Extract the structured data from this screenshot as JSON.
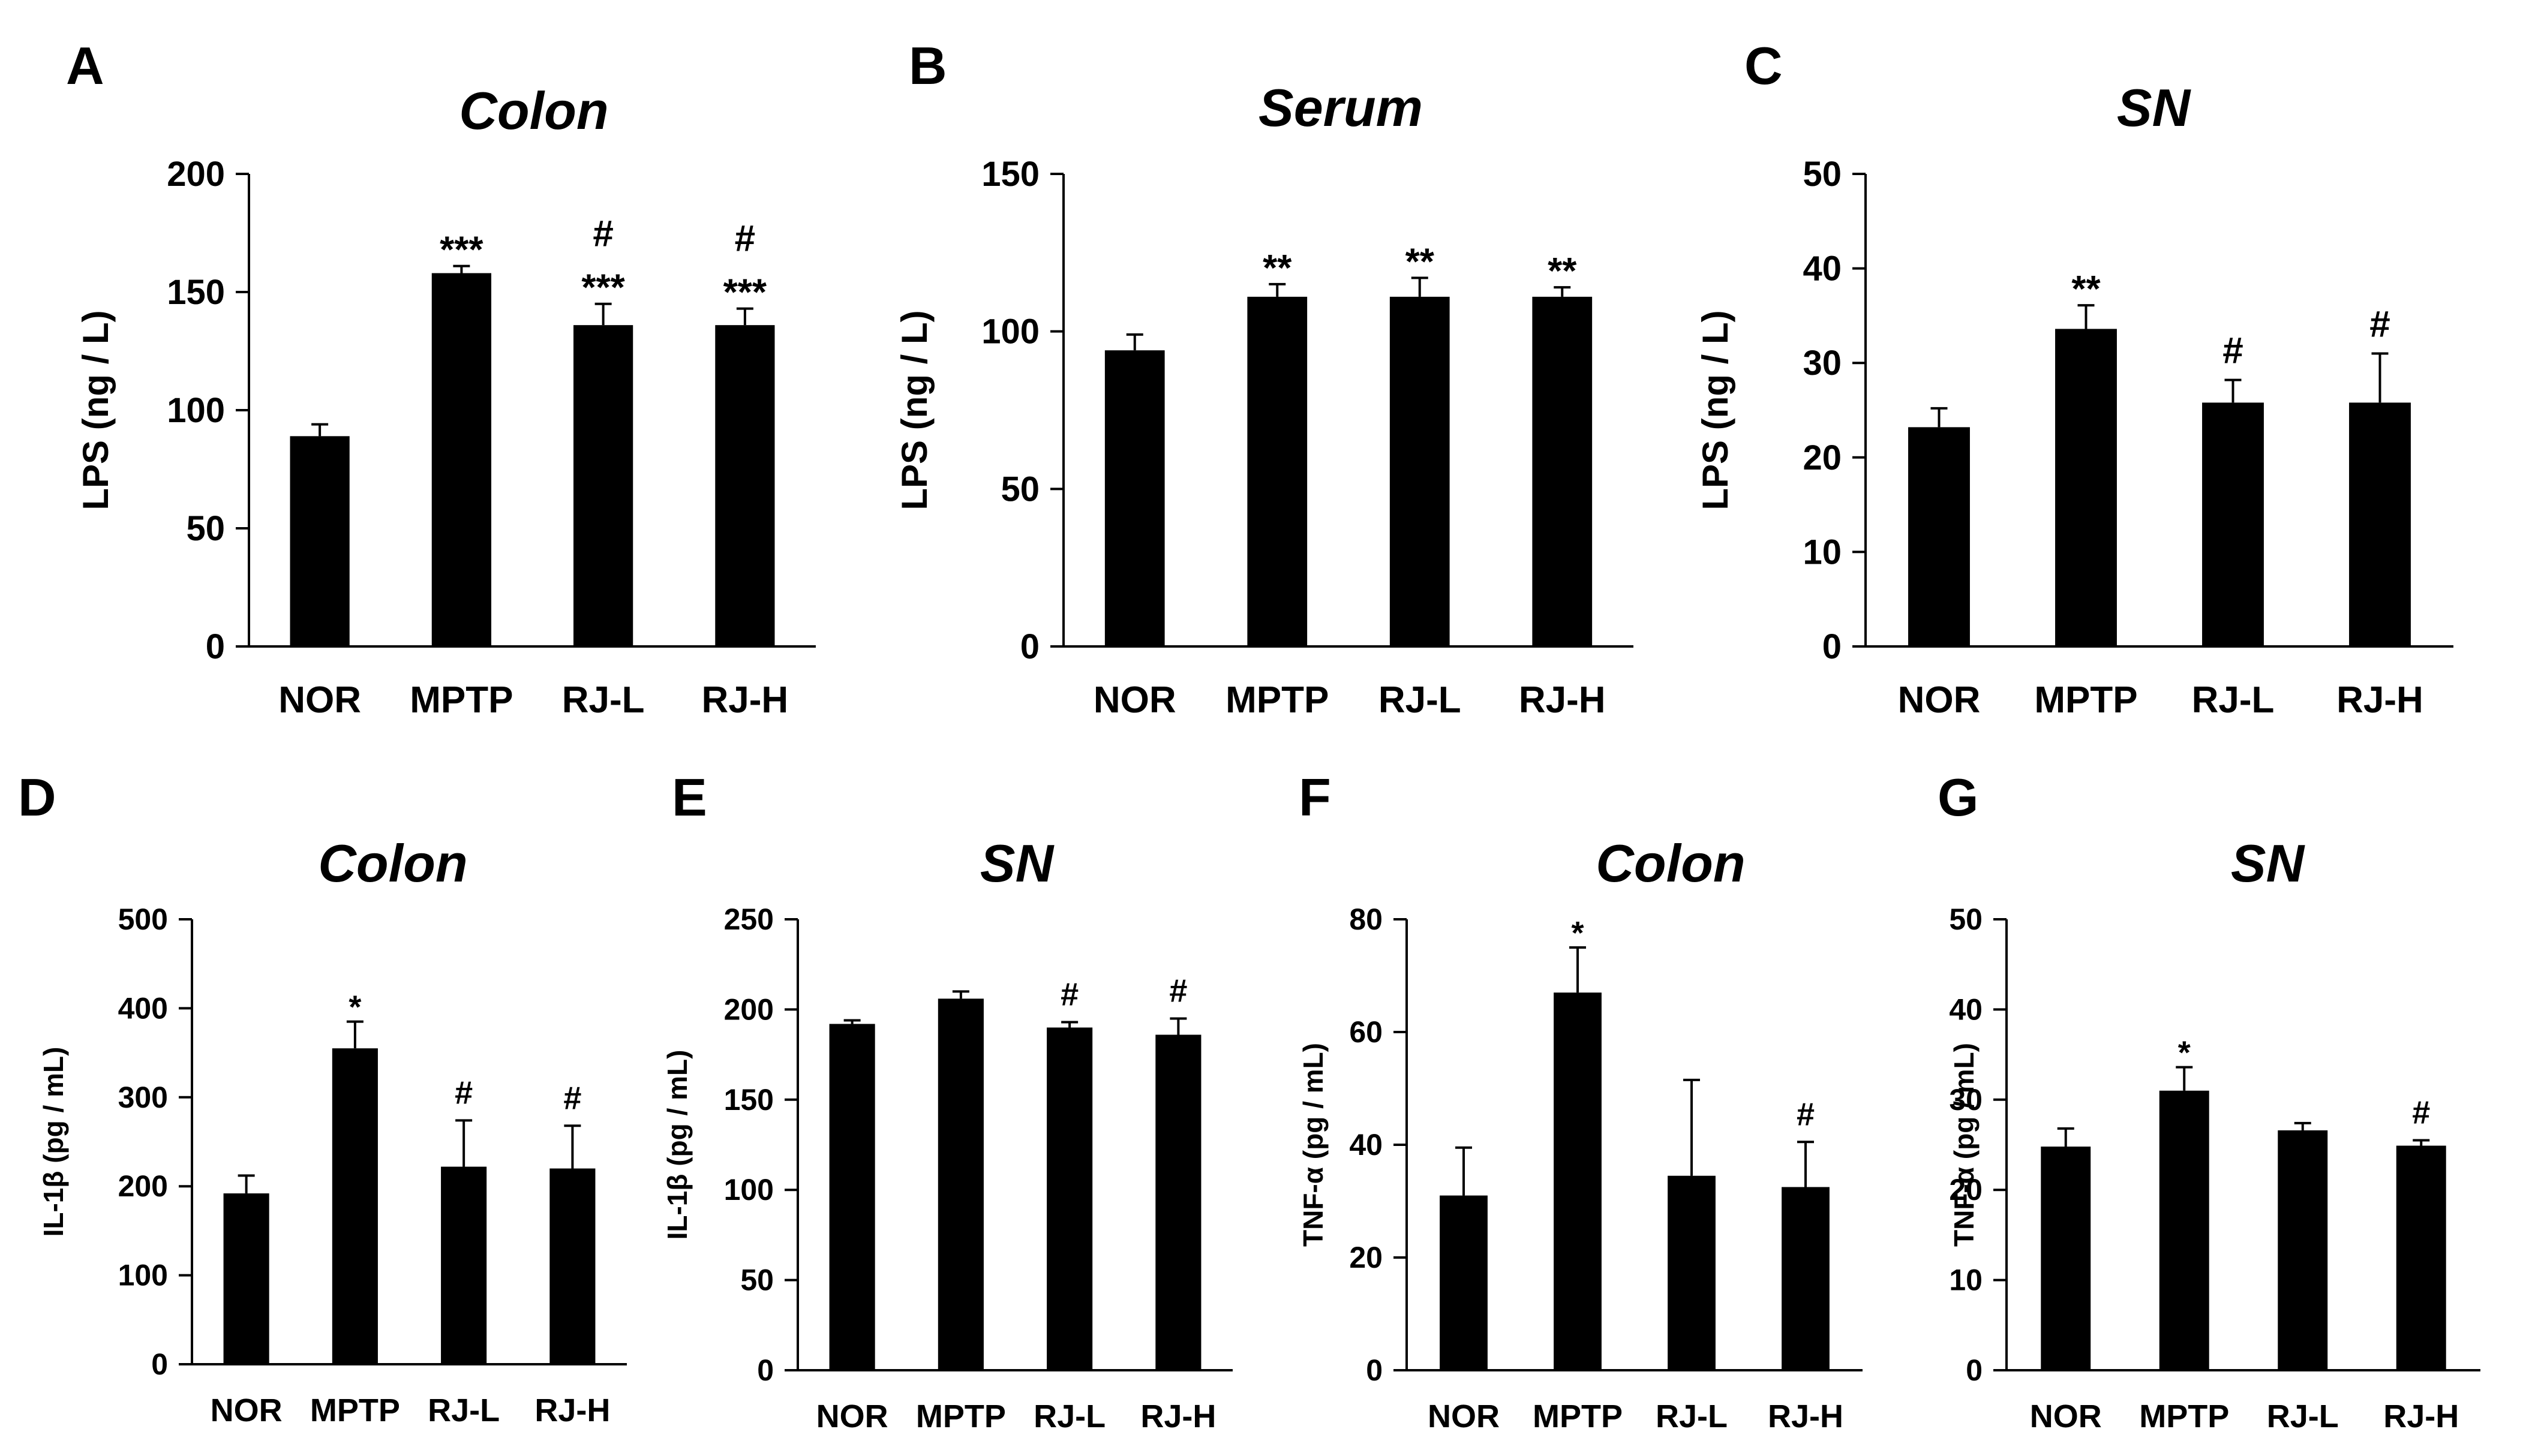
{
  "chart_data": [
    {
      "panel": "A",
      "type": "bar",
      "title": "Colon",
      "ylabel": "LPS (ng / L)",
      "xlabel": "",
      "ylim": [
        0,
        200
      ],
      "yticks": [
        0,
        50,
        100,
        150,
        200
      ],
      "categories": [
        "NOR",
        "MPTP",
        "RJ-L",
        "RJ-H"
      ],
      "values": [
        89,
        158,
        136,
        136
      ],
      "errors": [
        5,
        3,
        9,
        7
      ],
      "annotations": [
        [],
        [
          "***"
        ],
        [
          "***",
          "#"
        ],
        [
          "***",
          "#"
        ]
      ]
    },
    {
      "panel": "B",
      "type": "bar",
      "title": "Serum",
      "ylabel": "LPS (ng / L)",
      "xlabel": "",
      "ylim": [
        0,
        150
      ],
      "yticks": [
        0,
        50,
        100,
        150
      ],
      "categories": [
        "NOR",
        "MPTP",
        "RJ-L",
        "RJ-H"
      ],
      "values": [
        94,
        111,
        111,
        111
      ],
      "errors": [
        5,
        4,
        6,
        3
      ],
      "annotations": [
        [],
        [
          "**"
        ],
        [
          "**"
        ],
        [
          "**"
        ]
      ]
    },
    {
      "panel": "C",
      "type": "bar",
      "title": "SN",
      "ylabel": "LPS (ng / L)",
      "xlabel": "",
      "ylim": [
        0,
        50
      ],
      "yticks": [
        0,
        10,
        20,
        30,
        40,
        50
      ],
      "categories": [
        "NOR",
        "MPTP",
        "RJ-L",
        "RJ-H"
      ],
      "values": [
        23.2,
        33.6,
        25.8,
        25.8
      ],
      "errors": [
        2,
        2.5,
        2.4,
        5.2
      ],
      "annotations": [
        [],
        [
          "**"
        ],
        [
          "#"
        ],
        [
          "#"
        ]
      ]
    },
    {
      "panel": "D",
      "type": "bar",
      "title": "Colon",
      "ylabel": "IL-1β (pg / mL)",
      "xlabel": "",
      "ylim": [
        0,
        500
      ],
      "yticks": [
        0,
        100,
        200,
        300,
        400,
        500
      ],
      "categories": [
        "NOR",
        "MPTP",
        "RJ-L",
        "RJ-H"
      ],
      "values": [
        192,
        355,
        222,
        220
      ],
      "errors": [
        20,
        30,
        52,
        48
      ],
      "annotations": [
        [],
        [
          "*"
        ],
        [
          "#"
        ],
        [
          "#"
        ]
      ]
    },
    {
      "panel": "E",
      "type": "bar",
      "title": "SN",
      "ylabel": "IL-1β (pg / mL)",
      "xlabel": "",
      "ylim": [
        0,
        250
      ],
      "yticks": [
        0,
        50,
        100,
        150,
        200,
        250
      ],
      "categories": [
        "NOR",
        "MPTP",
        "RJ-L",
        "RJ-H"
      ],
      "values": [
        192,
        206,
        190,
        186
      ],
      "errors": [
        2,
        4,
        3,
        9
      ],
      "annotations": [
        [],
        [],
        [
          "#"
        ],
        [
          "#"
        ]
      ]
    },
    {
      "panel": "F",
      "type": "bar",
      "title": "Colon",
      "ylabel": "TNF-α (pg / mL)",
      "xlabel": "",
      "ylim": [
        0,
        80
      ],
      "yticks": [
        0,
        20,
        40,
        60,
        80
      ],
      "categories": [
        "NOR",
        "MPTP",
        "RJ-L",
        "RJ-H"
      ],
      "values": [
        31,
        67,
        34.5,
        32.5
      ],
      "errors": [
        8.5,
        8,
        17,
        8
      ],
      "annotations": [
        [],
        [
          "*"
        ],
        [],
        [
          "#"
        ]
      ]
    },
    {
      "panel": "G",
      "type": "bar",
      "title": "SN",
      "ylabel": "TNF-α (pg / mL)",
      "xlabel": "",
      "ylim": [
        0,
        50
      ],
      "yticks": [
        0,
        10,
        20,
        30,
        40,
        50
      ],
      "categories": [
        "NOR",
        "MPTP",
        "RJ-L",
        "RJ-H"
      ],
      "values": [
        24.8,
        31,
        26.6,
        24.9
      ],
      "errors": [
        2,
        2.6,
        0.8,
        0.6
      ],
      "annotations": [
        [],
        [
          "*"
        ],
        [],
        [
          "#"
        ]
      ]
    }
  ]
}
